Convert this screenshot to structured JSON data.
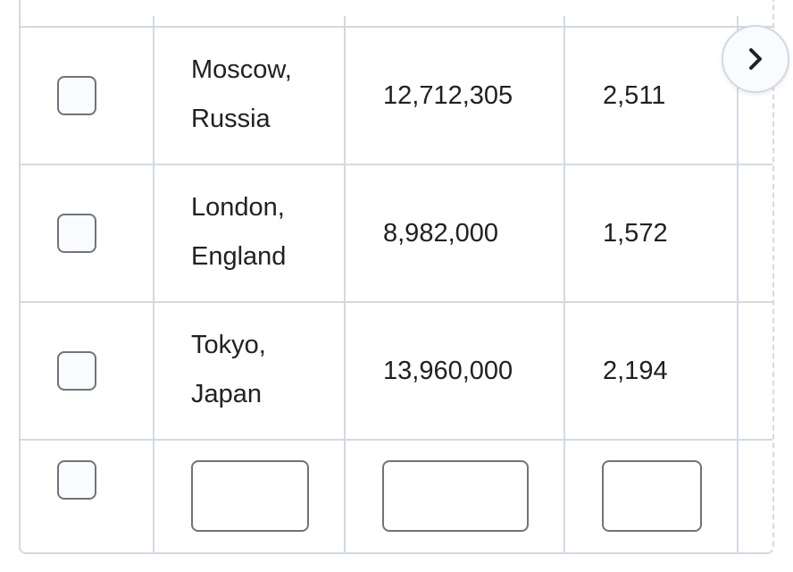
{
  "table": {
    "rows": [
      {
        "city_line1": "Moscow,",
        "city_line2": "Russia",
        "population": "12,712,305",
        "area": "2,511"
      },
      {
        "city_line1": "London,",
        "city_line2": "England",
        "population": "8,982,000",
        "area": "1,572"
      },
      {
        "city_line1": "Tokyo,",
        "city_line2": "Japan",
        "population": "13,960,000",
        "area": "2,194"
      }
    ],
    "new_row": {
      "city_value": "",
      "population_value": "",
      "area_value": ""
    }
  },
  "scroll_button": {
    "icon": "chevron-right-icon"
  },
  "colors": {
    "grid": "#d3d9e3",
    "checkbox_border": "#6e7477",
    "checkbox_fill": "#f9fbff",
    "text": "#202122"
  }
}
